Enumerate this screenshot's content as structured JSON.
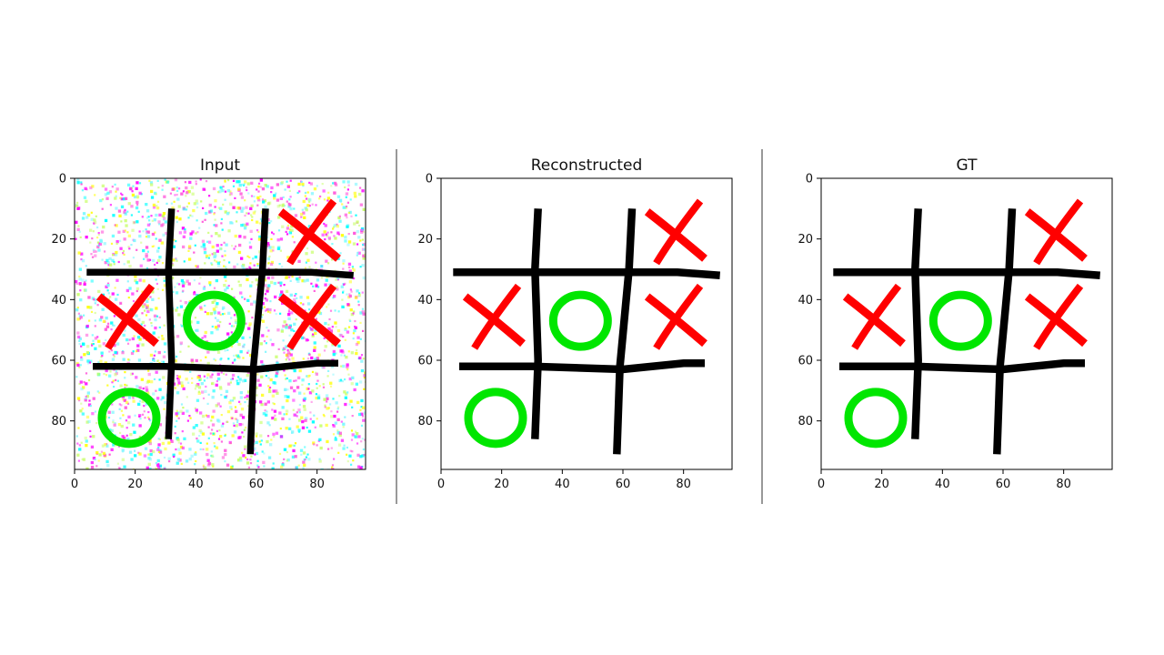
{
  "figure": {
    "panels": [
      {
        "id": "input",
        "title": "Input",
        "noisy": true
      },
      {
        "id": "reconstructed",
        "title": "Reconstructed",
        "noisy": false
      },
      {
        "id": "gt",
        "title": "GT",
        "noisy": false
      }
    ],
    "axes": {
      "xlim": [
        0,
        96
      ],
      "ylim": [
        0,
        96
      ],
      "x_ticks": [
        0,
        20,
        40,
        60,
        80
      ],
      "y_ticks": [
        0,
        20,
        40,
        60,
        80
      ]
    },
    "colors": {
      "grid_lines": "#000000",
      "x_mark": "#ff0000",
      "o_mark": "#00e600",
      "frame": "#000000",
      "noise": [
        "#ff00ff",
        "#00ffff",
        "#ffff00",
        "#ff4fd8",
        "#7cf6ff",
        "#c8ff6a"
      ]
    },
    "board": {
      "grid_strokes": [
        [
          [
            32,
            10
          ],
          [
            31,
            30
          ],
          [
            32,
            60
          ],
          [
            31,
            86
          ]
        ],
        [
          [
            63,
            10
          ],
          [
            62,
            30
          ],
          [
            59,
            62
          ],
          [
            58,
            91
          ]
        ],
        [
          [
            4,
            31
          ],
          [
            20,
            31
          ],
          [
            45,
            31
          ],
          [
            63,
            31
          ],
          [
            78,
            31
          ],
          [
            92,
            32
          ]
        ],
        [
          [
            6,
            62
          ],
          [
            30,
            62
          ],
          [
            60,
            63
          ],
          [
            80,
            61
          ],
          [
            87,
            61
          ]
        ]
      ],
      "x_marks": [
        {
          "center": [
            77,
            18
          ],
          "size": 10
        },
        {
          "center": [
            17,
            46
          ],
          "size": 10
        },
        {
          "center": [
            77,
            46
          ],
          "size": 10
        }
      ],
      "o_marks": [
        {
          "center": [
            46,
            47
          ],
          "radius": 9
        },
        {
          "center": [
            18,
            79
          ],
          "radius": 9
        }
      ]
    }
  }
}
